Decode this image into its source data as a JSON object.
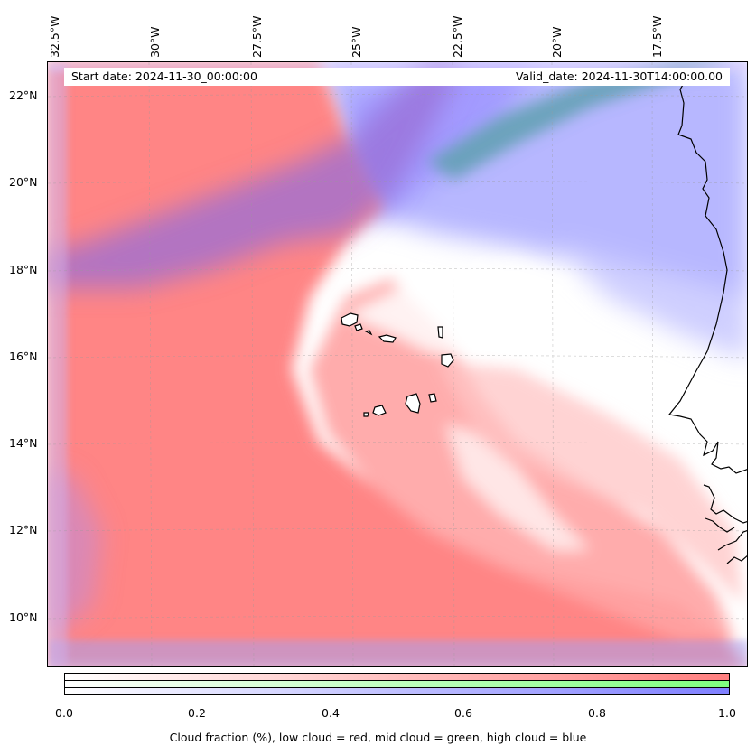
{
  "map": {
    "info": {
      "start_date": "Start date: 2024-11-30_00:00:00",
      "valid_date": "Valid_date: 2024-11-30T14:00:00.00"
    },
    "lon_labels": [
      "32.5°W",
      "30°W",
      "27.5°W",
      "25°W",
      "22.5°W",
      "20°W",
      "17.5°W"
    ],
    "lat_labels": [
      "22°N",
      "20°N",
      "18°N",
      "16°N",
      "14°N",
      "12°N",
      "10°N"
    ],
    "colors": {
      "low_cloud": "#ff7f7f",
      "mid_cloud": "#7fff7f",
      "high_cloud": "#7f7fff",
      "coastline": "#000000"
    }
  },
  "colorbar": {
    "ticks": [
      "0.0",
      "0.2",
      "0.4",
      "0.6",
      "0.8",
      "1.0"
    ],
    "caption": "Cloud fraction (%), low cloud = red, mid cloud = green, high cloud = blue"
  }
}
